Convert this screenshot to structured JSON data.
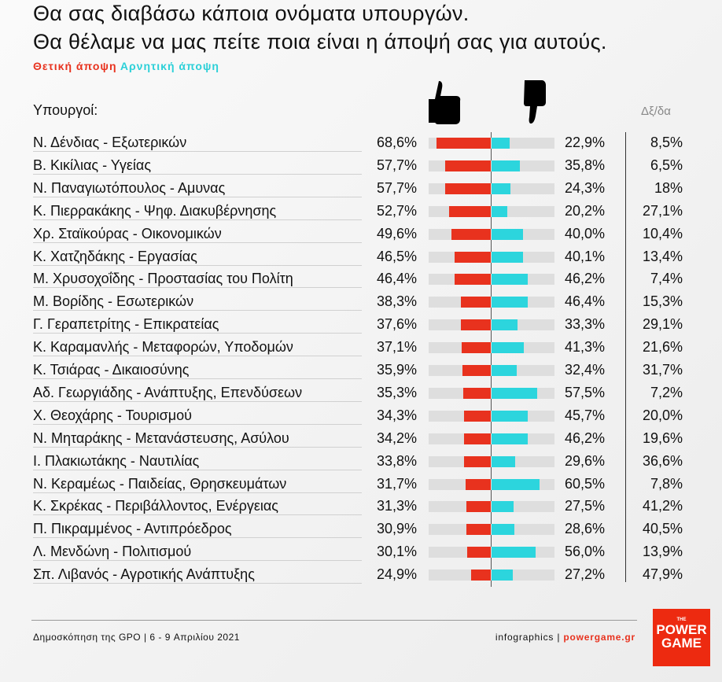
{
  "header": {
    "title_line1": "Θα σας διαβάσω κάποια ονόματα υπουργών.",
    "title_line2": "Θα θέλαμε να μας πείτε ποια είναι η άποψή σας για αυτούς.",
    "legend_positive": "Θετική άποψη",
    "legend_negative": "Αρνητική άποψη",
    "col_ministers": "Υπουργοί:",
    "col_dkda": "Δξ/δα"
  },
  "colors": {
    "positive": "#e8321e",
    "negative": "#2cd5dd",
    "track": "#dedede"
  },
  "chart_data": {
    "type": "bar",
    "title": "Θα σας διαβάσω κάποια ονόματα υπουργών. Θα θέλαμε να μας πείτε ποια είναι η άποψή σας για αυτούς.",
    "series_names": [
      "Θετική άποψη",
      "Αρνητική άποψη",
      "Δξ/δα"
    ],
    "xlim": [
      0,
      80
    ],
    "rows": [
      {
        "person": "Ν. Δένδιας",
        "ministry": "Εξωτερικών",
        "pos": 68.6,
        "neg": 22.9,
        "dk": "8,5%"
      },
      {
        "person": "Β. Κικίλιας",
        "ministry": "Υγείας",
        "pos": 57.7,
        "neg": 35.8,
        "dk": "6,5%"
      },
      {
        "person": "Ν. Παναγιωτόπουλος",
        "ministry": "Αμυνας",
        "pos": 57.7,
        "neg": 24.3,
        "dk": "18%"
      },
      {
        "person": "Κ. Πιερρακάκης",
        "ministry": "Ψηφ. Διακυβέρνησης",
        "pos": 52.7,
        "neg": 20.2,
        "dk": "27,1%"
      },
      {
        "person": "Χρ. Σταϊκούρας",
        "ministry": "Οικονομικών",
        "pos": 49.6,
        "neg": 40.0,
        "dk": "10,4%"
      },
      {
        "person": "Κ. Χατζηδάκης",
        "ministry": "Εργασίας",
        "pos": 46.5,
        "neg": 40.1,
        "dk": "13,4%"
      },
      {
        "person": "Μ. Χρυσοχοΐδης",
        "ministry": "Προστασίας του Πολίτη",
        "pos": 46.4,
        "neg": 46.2,
        "dk": "7,4%"
      },
      {
        "person": "Μ. Βορίδης",
        "ministry": "Εσωτερικών",
        "pos": 38.3,
        "neg": 46.4,
        "dk": "15,3%"
      },
      {
        "person": "Γ. Γεραπετρίτης",
        "ministry": "Επικρατείας",
        "pos": 37.6,
        "neg": 33.3,
        "dk": "29,1%"
      },
      {
        "person": "Κ. Καραμανλής",
        "ministry": "Μεταφορών, Υποδομών",
        "pos": 37.1,
        "neg": 41.3,
        "dk": "21,6%"
      },
      {
        "person": "Κ. Τσιάρας",
        "ministry": "Δικαιοσύνης",
        "pos": 35.9,
        "neg": 32.4,
        "dk": "31,7%"
      },
      {
        "person": "Αδ. Γεωργιάδης",
        "ministry": "Ανάπτυξης, Επενδύσεων",
        "pos": 35.3,
        "neg": 57.5,
        "dk": "7,2%"
      },
      {
        "person": "Χ. Θεοχάρης",
        "ministry": "Τουρισμού",
        "pos": 34.3,
        "neg": 45.7,
        "dk": "20,0%"
      },
      {
        "person": "Ν. Μηταράκης",
        "ministry": "Μετανάστευσης, Ασύλου",
        "pos": 34.2,
        "neg": 46.2,
        "dk": "19,6%"
      },
      {
        "person": "Ι. Πλακιωτάκης",
        "ministry": "Ναυτιλίας",
        "pos": 33.8,
        "neg": 29.6,
        "dk": "36,6%"
      },
      {
        "person": "Ν. Κεραμέως",
        "ministry": "Παιδείας, Θρησκευμάτων",
        "pos": 31.7,
        "neg": 60.5,
        "dk": "7,8%"
      },
      {
        "person": "Κ. Σκρέκας",
        "ministry": "Περιβάλλοντος, Ενέργειας",
        "pos": 31.3,
        "neg": 27.5,
        "dk": "41,2%"
      },
      {
        "person": "Π. Πικραμμένος",
        "ministry": "Αντιπρόεδρος",
        "pos": 30.9,
        "neg": 28.6,
        "dk": "40,5%"
      },
      {
        "person": "Λ. Μενδώνη",
        "ministry": "Πολιτισμού",
        "pos": 30.1,
        "neg": 56.0,
        "dk": "13,9%"
      },
      {
        "person": "Σπ. Λιβανός",
        "ministry": "Αγροτικής Ανάπτυξης",
        "pos": 24.9,
        "neg": 27.2,
        "dk": "47,9%"
      }
    ]
  },
  "footer": {
    "source": "Δημοσκόπηση της GPO | 6 - 9 Απριλίου 2021",
    "credit_prefix": "infographics | ",
    "credit_site": "powergame.gr",
    "logo_the": "THE",
    "logo_line1": "POWER",
    "logo_line2": "GAME"
  }
}
